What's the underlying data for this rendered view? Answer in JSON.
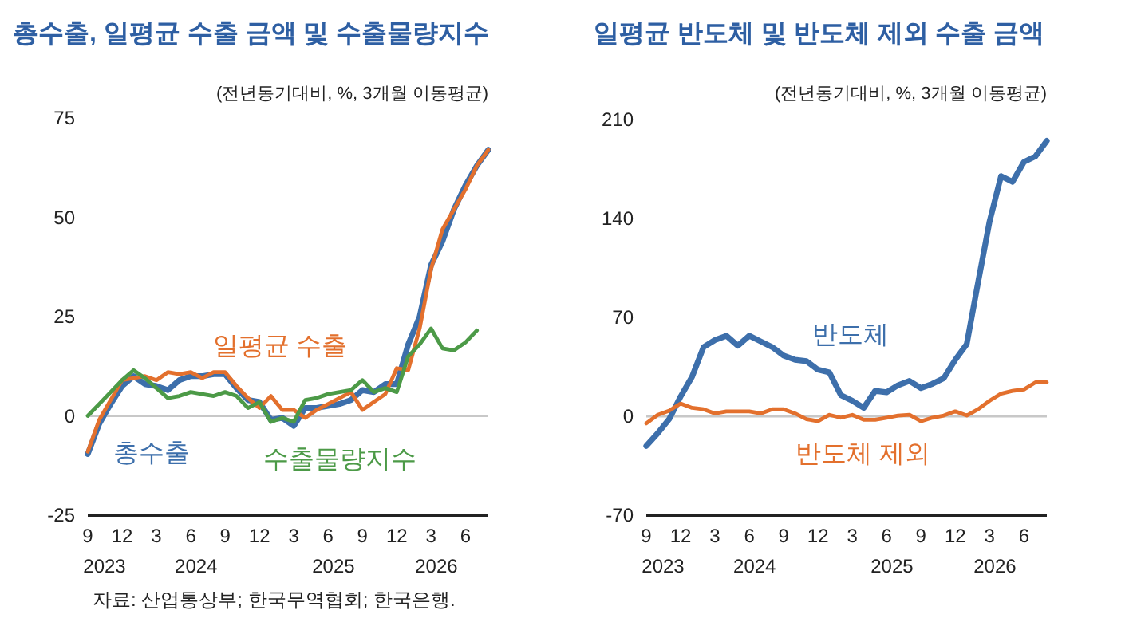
{
  "chart_data": [
    {
      "type": "line",
      "title": "총수출, 일평균 수출 금액 및 수출물량지수",
      "subtitle": "(전년동기대비, %, 3개월 이동평균)",
      "x": [
        "2023-09",
        "2023-10",
        "2023-11",
        "2023-12",
        "2024-01",
        "2024-02",
        "2024-03",
        "2024-04",
        "2024-05",
        "2024-06",
        "2024-07",
        "2024-08",
        "2024-09",
        "2024-10",
        "2024-11",
        "2024-12",
        "2025-01",
        "2025-02",
        "2025-03",
        "2025-04",
        "2025-05",
        "2025-06",
        "2025-07",
        "2025-08",
        "2025-09",
        "2025-10",
        "2025-11",
        "2025-12",
        "2026-01",
        "2026-02",
        "2026-03",
        "2026-04",
        "2026-05",
        "2026-06",
        "2026-07",
        "2026-08"
      ],
      "series": [
        {
          "name": "총수출",
          "color": "#3d6fab",
          "values": [
            -9.6,
            -2,
            3,
            7.5,
            10,
            8,
            7.5,
            6.5,
            9,
            10,
            10,
            10.5,
            10.5,
            7,
            4,
            3.5,
            -1,
            -0.5,
            -2.5,
            2,
            2,
            2.5,
            3,
            4,
            6.5,
            6,
            8,
            8,
            18,
            25,
            38,
            44,
            52,
            58,
            63,
            67
          ]
        },
        {
          "name": "일평균 수출",
          "color": "#e3702d",
          "values": [
            -9,
            -1,
            4,
            9,
            9.5,
            10,
            9,
            11,
            10.5,
            11,
            9.5,
            11,
            11,
            7.5,
            4.5,
            2,
            5,
            1.5,
            1.5,
            -0.5,
            1.5,
            3,
            4.5,
            6,
            1.5,
            3.5,
            5.5,
            12,
            11.5,
            22,
            37,
            47,
            52,
            57,
            63,
            67
          ]
        },
        {
          "name": "수출물량지수",
          "color": "#4c9a47",
          "values": [
            0,
            3,
            6,
            9,
            11.5,
            9.5,
            7,
            4.5,
            5,
            6,
            5.5,
            5,
            6,
            5,
            2,
            3.5,
            -1.5,
            -0.5,
            -1.5,
            4,
            4.5,
            5.5,
            6,
            6.5,
            9,
            6,
            7,
            6,
            15,
            18,
            22,
            17,
            16.5,
            18.5,
            21.5,
            null
          ]
        }
      ],
      "xlim": [
        "2023-09",
        "2026-08"
      ],
      "xticks": [
        {
          "value": "2023-09",
          "label": "9"
        },
        {
          "value": "2023-12",
          "label": "12"
        },
        {
          "value": "2024-03",
          "label": "3"
        },
        {
          "value": "2024-06",
          "label": "6"
        },
        {
          "value": "2024-09",
          "label": "9"
        },
        {
          "value": "2024-12",
          "label": "12"
        },
        {
          "value": "2025-03",
          "label": "3"
        },
        {
          "value": "2025-06",
          "label": "6"
        },
        {
          "value": "2025-09",
          "label": "9"
        },
        {
          "value": "2025-12",
          "label": "12"
        },
        {
          "value": "2026-03",
          "label": "3"
        },
        {
          "value": "2026-06",
          "label": "6"
        }
      ],
      "x2lim": [
        "2023-09",
        "2026-08"
      ],
      "x2ticks": [
        {
          "value": "2023-10-15",
          "label": "2023"
        },
        {
          "value": "2024-06-15",
          "label": "2024"
        },
        {
          "value": "2025-06-15",
          "label": "2025"
        },
        {
          "value": "2026-03-15",
          "label": "2026"
        }
      ],
      "ylim": [
        -25,
        75
      ],
      "yticks": [
        -25,
        0,
        25,
        50,
        75
      ],
      "ref_lines": [
        {
          "axis": "y",
          "value": 0,
          "color": "#c8c8c8"
        }
      ],
      "annotations": [
        "자료: 산업통상부; 한국무역협회; 한국은행."
      ]
    },
    {
      "type": "line",
      "title": "일평균 반도체 및 반도체 제외 수출 금액",
      "subtitle": "(전년동기대비, %, 3개월 이동평균)",
      "x": [
        "2023-09",
        "2023-10",
        "2023-11",
        "2023-12",
        "2024-01",
        "2024-02",
        "2024-03",
        "2024-04",
        "2024-05",
        "2024-06",
        "2024-07",
        "2024-08",
        "2024-09",
        "2024-10",
        "2024-11",
        "2024-12",
        "2025-01",
        "2025-02",
        "2025-03",
        "2025-04",
        "2025-05",
        "2025-06",
        "2025-07",
        "2025-08",
        "2025-09",
        "2025-10",
        "2025-11",
        "2025-12",
        "2026-01",
        "2026-02",
        "2026-03",
        "2026-04",
        "2026-05",
        "2026-06",
        "2026-07",
        "2026-08"
      ],
      "series": [
        {
          "name": "반도체",
          "color": "#3d6fab",
          "values": [
            -21,
            -12,
            -2,
            14,
            28,
            49,
            54,
            57,
            50,
            57,
            53,
            49,
            43,
            40,
            39,
            33,
            31,
            15,
            11,
            6,
            18,
            17,
            22,
            25,
            20,
            23,
            27,
            40,
            51,
            95,
            138,
            170,
            166,
            180,
            184,
            195
          ]
        },
        {
          "name": "반도체 제외",
          "color": "#e3702d",
          "values": [
            -5,
            1,
            4,
            9,
            6,
            5,
            2,
            3.5,
            3.5,
            3.5,
            2,
            5,
            5,
            2,
            -2,
            -3.5,
            1,
            -1,
            1,
            -2.5,
            -2.5,
            -1,
            0.5,
            1,
            -3.5,
            -1,
            0.5,
            3.5,
            0.5,
            5,
            11,
            16,
            18,
            19,
            24,
            24
          ]
        }
      ],
      "xlim": [
        "2023-09",
        "2026-08"
      ],
      "xticks": [
        {
          "value": "2023-09",
          "label": "9"
        },
        {
          "value": "2023-12",
          "label": "12"
        },
        {
          "value": "2024-03",
          "label": "3"
        },
        {
          "value": "2024-06",
          "label": "6"
        },
        {
          "value": "2024-09",
          "label": "9"
        },
        {
          "value": "2024-12",
          "label": "12"
        },
        {
          "value": "2025-03",
          "label": "3"
        },
        {
          "value": "2025-06",
          "label": "6"
        },
        {
          "value": "2025-09",
          "label": "9"
        },
        {
          "value": "2025-12",
          "label": "12"
        },
        {
          "value": "2026-03",
          "label": "3"
        },
        {
          "value": "2026-06",
          "label": "6"
        }
      ],
      "x2lim": [
        "2023-09",
        "2026-08"
      ],
      "x2ticks": [
        {
          "value": "2023-10-15",
          "label": "2023"
        },
        {
          "value": "2024-06-15",
          "label": "2024"
        },
        {
          "value": "2025-06-15",
          "label": "2025"
        },
        {
          "value": "2026-03-15",
          "label": "2026"
        }
      ],
      "ylim": [
        -70,
        210
      ],
      "yticks": [
        -70,
        0,
        70,
        140,
        210
      ],
      "ref_lines": [
        {
          "axis": "y",
          "value": 0,
          "color": "#c8c8c8"
        }
      ]
    }
  ]
}
